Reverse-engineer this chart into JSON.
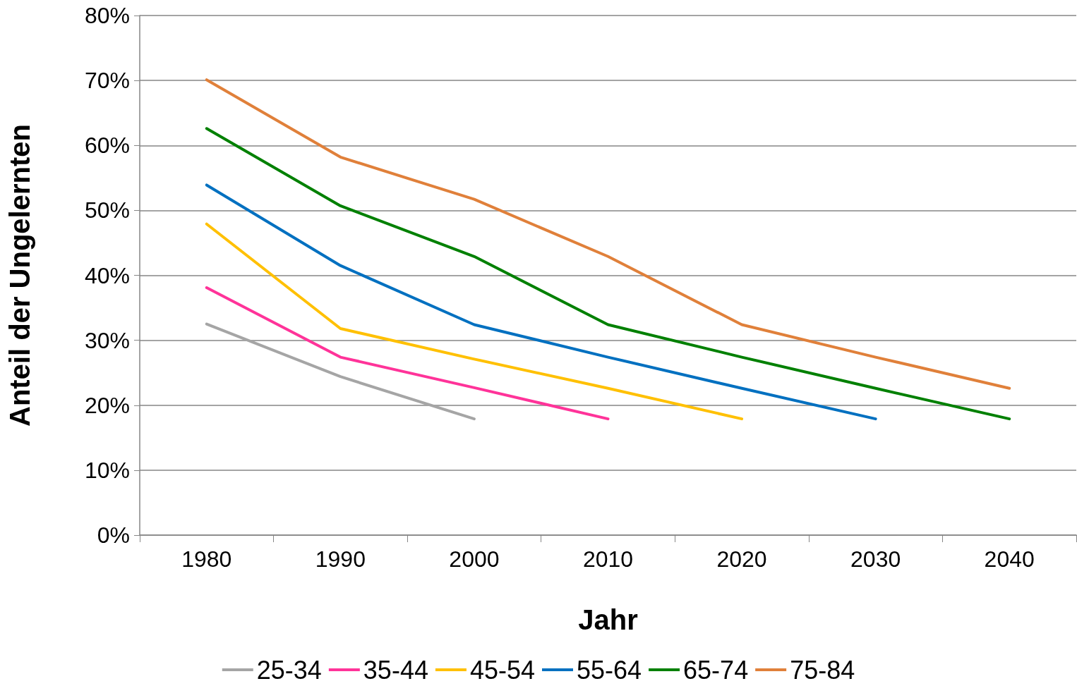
{
  "chart_data": {
    "type": "line",
    "xlabel": "Jahr",
    "ylabel": "Anteil der Ungelernten",
    "categories": [
      "1980",
      "1990",
      "2000",
      "2010",
      "2020",
      "2030",
      "2040"
    ],
    "series": [
      {
        "name": "25-34",
        "color": "#a5a5a5",
        "values": [
          32.5,
          24.4,
          17.9,
          null,
          null,
          null,
          null
        ]
      },
      {
        "name": "35-44",
        "color": "#ff3399",
        "values": [
          38.1,
          27.4,
          22.7,
          17.9,
          null,
          null,
          null
        ]
      },
      {
        "name": "45-54",
        "color": "#ffc000",
        "values": [
          47.9,
          31.8,
          27.1,
          22.6,
          17.9,
          null,
          null
        ]
      },
      {
        "name": "55-64",
        "color": "#0070c0",
        "values": [
          53.9,
          41.5,
          32.4,
          27.4,
          22.6,
          17.9,
          null
        ]
      },
      {
        "name": "65-74",
        "color": "#008000",
        "values": [
          62.6,
          50.7,
          42.9,
          32.4,
          27.4,
          22.6,
          17.9
        ]
      },
      {
        "name": "75-84",
        "color": "#e0803a",
        "values": [
          70.1,
          58.2,
          51.7,
          42.9,
          32.4,
          27.4,
          22.6
        ]
      }
    ],
    "ylim": [
      0,
      80
    ],
    "yticks": [
      {
        "value": 0,
        "label": "0%"
      },
      {
        "value": 10,
        "label": "10%"
      },
      {
        "value": 20,
        "label": "20%"
      },
      {
        "value": 30,
        "label": "30%"
      },
      {
        "value": 40,
        "label": "40%"
      },
      {
        "value": 50,
        "label": "50%"
      },
      {
        "value": 60,
        "label": "60%"
      },
      {
        "value": 70,
        "label": "70%"
      },
      {
        "value": 80,
        "label": "80%"
      }
    ],
    "grid": "y",
    "legend": "bottom",
    "marker": "none",
    "line_style": "solid"
  }
}
